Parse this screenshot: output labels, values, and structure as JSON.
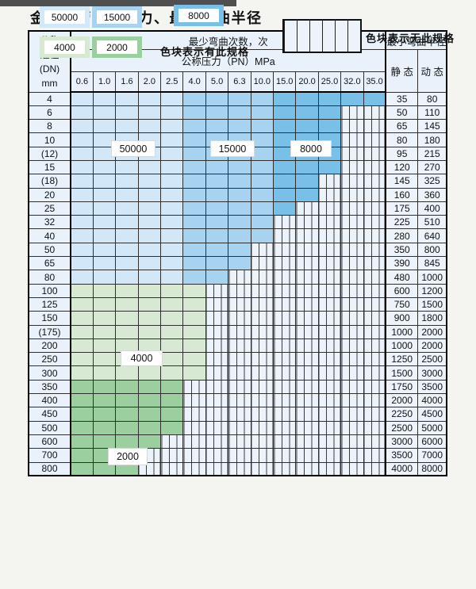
{
  "title": "金属软管公称压力、最小弯曲半径",
  "colors": {
    "c50000": "#d2e7f7",
    "c15000": "#a7d3f0",
    "c8000": "#79c0e9",
    "c4000": "#d8e9d3",
    "c2000": "#9ccf9f",
    "header_bg": "#e9f2fa",
    "hatch_bg": "#ecf3fa",
    "grid": "#2e2e2e"
  },
  "table": {
    "dn_header_lines": [
      "公称",
      "通径",
      "(DN)",
      "mm"
    ],
    "bend_header": "最少弯曲次数，次",
    "pressure_header": "公称压力（PN）MPa",
    "pressure_cols": [
      "0.6",
      "1.0",
      "1.6",
      "2.0",
      "2.5",
      "4.0",
      "5.0",
      "6.3",
      "10.0",
      "15.0",
      "20.0",
      "25.0",
      "32.0",
      "35.0"
    ],
    "radius_header": "最小弯曲半径",
    "static_header": "静 态",
    "dynamic_header": "动 态",
    "blue_bands": [
      {
        "last_col": 4,
        "color_key": "c50000",
        "label": "50000"
      },
      {
        "last_col": 8,
        "color_key": "c15000",
        "label": "15000"
      },
      {
        "last_col": 13,
        "color_key": "c8000",
        "label": "8000"
      }
    ],
    "rows": [
      {
        "dn": "4",
        "band": "blue",
        "last": 13,
        "static": "35",
        "dynamic": "80"
      },
      {
        "dn": "6",
        "band": "blue",
        "last": 11,
        "static": "50",
        "dynamic": "110"
      },
      {
        "dn": "8",
        "band": "blue",
        "last": 11,
        "static": "65",
        "dynamic": "145"
      },
      {
        "dn": "10",
        "band": "blue",
        "last": 11,
        "static": "80",
        "dynamic": "180"
      },
      {
        "dn": "(12)",
        "band": "blue",
        "last": 11,
        "static": "95",
        "dynamic": "215"
      },
      {
        "dn": "15",
        "band": "blue",
        "last": 11,
        "static": "120",
        "dynamic": "270"
      },
      {
        "dn": "(18)",
        "band": "blue",
        "last": 10,
        "static": "145",
        "dynamic": "325"
      },
      {
        "dn": "20",
        "band": "blue",
        "last": 10,
        "static": "160",
        "dynamic": "360"
      },
      {
        "dn": "25",
        "band": "blue",
        "last": 9,
        "static": "175",
        "dynamic": "400"
      },
      {
        "dn": "32",
        "band": "blue",
        "last": 8,
        "static": "225",
        "dynamic": "510"
      },
      {
        "dn": "40",
        "band": "blue",
        "last": 8,
        "static": "280",
        "dynamic": "640"
      },
      {
        "dn": "50",
        "band": "blue",
        "last": 7,
        "static": "350",
        "dynamic": "800"
      },
      {
        "dn": "65",
        "band": "blue",
        "last": 7,
        "static": "390",
        "dynamic": "845"
      },
      {
        "dn": "80",
        "band": "blue",
        "last": 6,
        "static": "480",
        "dynamic": "1000"
      },
      {
        "dn": "100",
        "band": "c4000",
        "last": 5,
        "static": "600",
        "dynamic": "1200"
      },
      {
        "dn": "125",
        "band": "c4000",
        "last": 5,
        "static": "750",
        "dynamic": "1500"
      },
      {
        "dn": "150",
        "band": "c4000",
        "last": 5,
        "static": "900",
        "dynamic": "1800"
      },
      {
        "dn": "(175)",
        "band": "c4000",
        "last": 5,
        "static": "1000",
        "dynamic": "2000"
      },
      {
        "dn": "200",
        "band": "c4000",
        "last": 5,
        "static": "1000",
        "dynamic": "2000"
      },
      {
        "dn": "250",
        "band": "c4000",
        "last": 5,
        "static": "1250",
        "dynamic": "2500"
      },
      {
        "dn": "300",
        "band": "c4000",
        "last": 5,
        "static": "1500",
        "dynamic": "3000"
      },
      {
        "dn": "350",
        "band": "c2000",
        "last": 4,
        "static": "1750",
        "dynamic": "3500"
      },
      {
        "dn": "400",
        "band": "c2000",
        "last": 4,
        "static": "2000",
        "dynamic": "4000"
      },
      {
        "dn": "450",
        "band": "c2000",
        "last": 4,
        "static": "2250",
        "dynamic": "4500"
      },
      {
        "dn": "500",
        "band": "c2000",
        "last": 4,
        "static": "2500",
        "dynamic": "5000"
      },
      {
        "dn": "600",
        "band": "c2000",
        "last": 3,
        "static": "3000",
        "dynamic": "6000"
      },
      {
        "dn": "700",
        "band": "c2000",
        "last": 2,
        "static": "3500",
        "dynamic": "7000"
      },
      {
        "dn": "800",
        "band": "c2000",
        "last": 2,
        "static": "4000",
        "dynamic": "8000"
      }
    ]
  },
  "region_labels": [
    "50000",
    "15000",
    "8000",
    "4000",
    "2000"
  ],
  "legend": {
    "items": [
      {
        "label": "50000",
        "color_key": "c50000"
      },
      {
        "label": "15000",
        "color_key": "c15000"
      },
      {
        "label": "8000",
        "color_key": "c8000"
      },
      {
        "label": "4000",
        "color_key": "c4000"
      },
      {
        "label": "2000",
        "color_key": "c2000"
      }
    ],
    "has_spec_text": "色块表示有此规格",
    "no_spec_text": "色块表示无此规格"
  }
}
